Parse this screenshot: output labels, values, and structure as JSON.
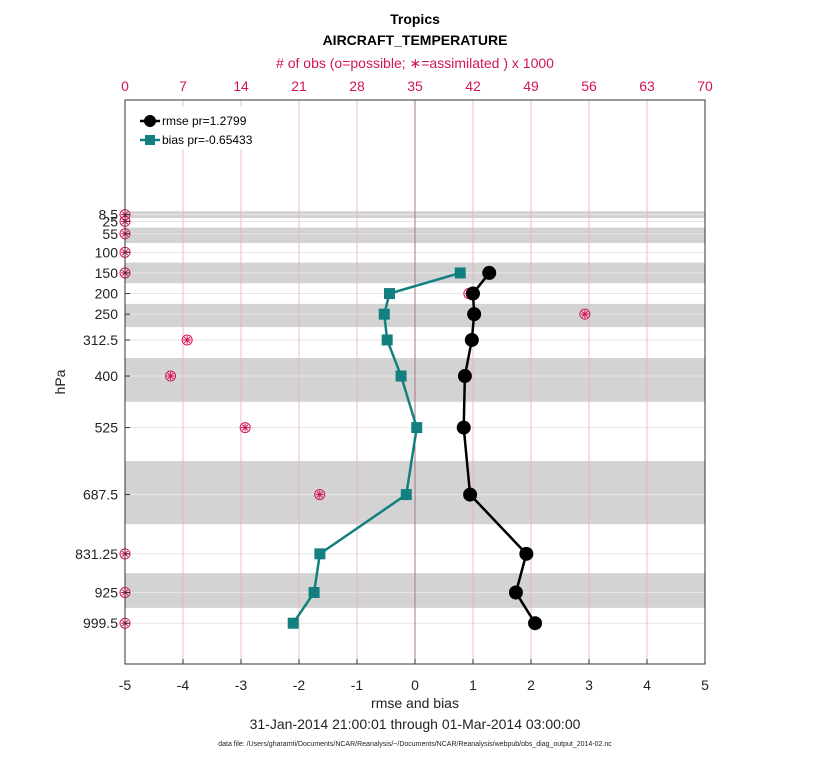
{
  "chart_data": {
    "type": "line",
    "title": "Tropics",
    "subtitle": "AIRCRAFT_TEMPERATURE",
    "top_axis_label": "# of obs (o=possible; ∗=assimilated ) x 1000",
    "xlabel": "rmse and bias",
    "ylabel": "hPa",
    "date_range": "31-Jan-2014 21:00:01 through 01-Mar-2014 03:00:00",
    "footnote": "data file: /Users/gharamti/Documents/NCAR/Reanalysis/~/Documents/NCAR/Reanalysis/webpub/obs_diag_output_2014-02.nc",
    "xlim": [
      -5,
      5
    ],
    "x_ticks": [
      "-5",
      "-4",
      "-3",
      "-2",
      "-1",
      "0",
      "1",
      "2",
      "3",
      "4",
      "5"
    ],
    "top_xlim": [
      0,
      70
    ],
    "top_ticks": [
      "0",
      "7",
      "14",
      "21",
      "28",
      "35",
      "42",
      "49",
      "56",
      "63",
      "70"
    ],
    "levels": [
      8.5,
      25,
      55,
      100,
      150,
      200,
      250,
      312.5,
      400,
      525,
      687.5,
      831.25,
      925,
      999.5
    ],
    "level_labels": [
      "8.5",
      "25",
      "55",
      "100",
      "150",
      "200",
      "250",
      "312.5",
      "400",
      "525",
      "687.5",
      "831.25",
      "925",
      "999.5"
    ],
    "series": [
      {
        "name": "rmse pr=1.2799",
        "color": "#000000",
        "marker": "circle",
        "levels": [
          150,
          200,
          250,
          312.5,
          400,
          525,
          687.5,
          831.25,
          925,
          999.5
        ],
        "values": [
          1.28,
          1.0,
          1.02,
          0.98,
          0.86,
          0.84,
          0.95,
          1.92,
          1.74,
          2.07
        ]
      },
      {
        "name": "bias pr=-0.65433",
        "color": "#138080",
        "marker": "square",
        "levels": [
          150,
          200,
          250,
          312.5,
          400,
          525,
          687.5,
          831.25,
          925,
          999.5
        ],
        "values": [
          0.78,
          -0.44,
          -0.53,
          -0.48,
          -0.24,
          0.03,
          -0.15,
          -1.64,
          -1.74,
          -2.1
        ]
      }
    ],
    "obs_counts": {
      "color": "#d4145a",
      "levels": [
        8.5,
        25,
        55,
        100,
        150,
        200,
        250,
        312.5,
        400,
        525,
        687.5,
        831.25,
        925,
        999.5
      ],
      "possible": [
        0,
        0,
        0,
        0,
        0,
        41.5,
        55.5,
        7.5,
        5.5,
        14.5,
        23.5,
        0,
        0,
        0
      ],
      "assimilated": [
        0,
        0,
        0,
        0,
        0,
        41.5,
        55.5,
        7.5,
        5.5,
        14.5,
        23.5,
        0,
        0,
        0
      ]
    }
  }
}
